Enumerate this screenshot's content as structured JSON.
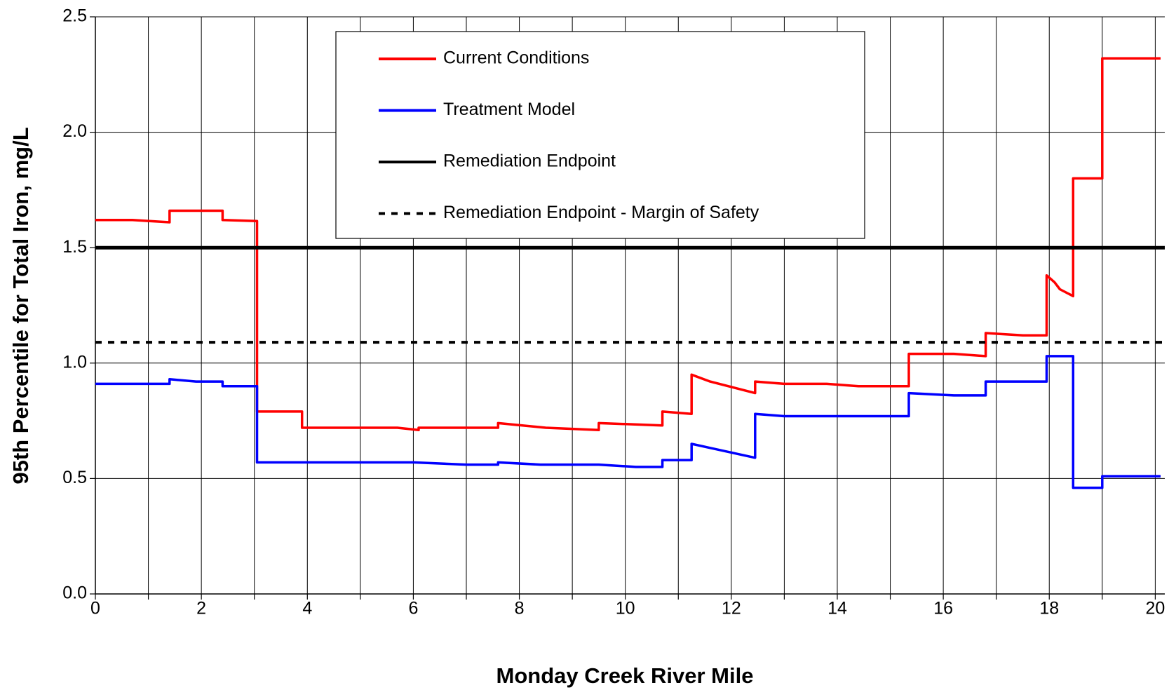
{
  "chart_data": {
    "type": "line",
    "x_label": "Monday Creek River Mile",
    "y_label": "95th Percentile for Total Iron, mg/L",
    "xlim": [
      0,
      20.18
    ],
    "xticks": [
      0,
      2,
      4,
      6,
      8,
      10,
      12,
      14,
      16,
      18,
      20
    ],
    "ylim": [
      0,
      2.5
    ],
    "yticks": [
      {
        "value": 0,
        "label": "0.0"
      },
      0.5,
      {
        "value": 1,
        "label": "1.0"
      },
      1.5,
      {
        "value": 2,
        "label": "2.0"
      },
      2.5
    ],
    "grid": true,
    "series": [
      {
        "name": "Current Conditions",
        "color": "#ff0000",
        "style": "solid",
        "x": [
          0,
          0.7,
          1.4,
          1.4,
          2.4,
          2.4,
          3.05,
          3.05,
          3.9,
          3.9,
          5.7,
          6.1,
          6.1,
          7.6,
          7.6,
          8.5,
          9.5,
          9.5,
          10.7,
          10.7,
          11.25,
          11.25,
          11.6,
          12.45,
          12.45,
          13,
          13.8,
          14.4,
          15.35,
          15.35,
          16.2,
          16.8,
          16.8,
          17.5,
          17.95,
          17.95,
          18.1,
          18.2,
          18.45,
          18.45,
          19,
          19,
          19.6,
          20.1
        ],
        "values": [
          1.62,
          1.62,
          1.61,
          1.66,
          1.66,
          1.62,
          1.615,
          0.79,
          0.79,
          0.72,
          0.72,
          0.71,
          0.72,
          0.72,
          0.74,
          0.72,
          0.71,
          0.74,
          0.73,
          0.79,
          0.78,
          0.95,
          0.92,
          0.87,
          0.92,
          0.91,
          0.91,
          0.9,
          0.9,
          1.04,
          1.04,
          1.03,
          1.13,
          1.12,
          1.12,
          1.38,
          1.35,
          1.32,
          1.29,
          1.8,
          1.8,
          2.32,
          2.32,
          2.32
        ]
      },
      {
        "name": "Treatment Model",
        "color": "#0000ff",
        "style": "solid",
        "x": [
          0,
          1.4,
          1.4,
          1.9,
          2.4,
          2.4,
          3.05,
          3.05,
          6,
          7,
          7.6,
          7.6,
          8.4,
          9.5,
          10.2,
          10.7,
          10.7,
          11.25,
          11.25,
          12.45,
          12.45,
          13,
          15.35,
          15.35,
          16.2,
          16.8,
          16.8,
          17.95,
          17.95,
          18.45,
          18.45,
          19,
          19,
          20.1
        ],
        "values": [
          0.91,
          0.91,
          0.93,
          0.92,
          0.92,
          0.9,
          0.9,
          0.57,
          0.57,
          0.56,
          0.56,
          0.57,
          0.56,
          0.56,
          0.55,
          0.55,
          0.58,
          0.58,
          0.65,
          0.59,
          0.78,
          0.77,
          0.77,
          0.87,
          0.86,
          0.86,
          0.92,
          0.92,
          1.03,
          1.03,
          0.46,
          0.46,
          0.51,
          0.51
        ]
      },
      {
        "name": "Remediation Endpoint",
        "color": "#000000",
        "style": "solid",
        "value": 1.5
      },
      {
        "name": "Remediation Endpoint - Margin of Safety",
        "color": "#000000",
        "style": "dotted",
        "value": 1.09
      }
    ]
  }
}
